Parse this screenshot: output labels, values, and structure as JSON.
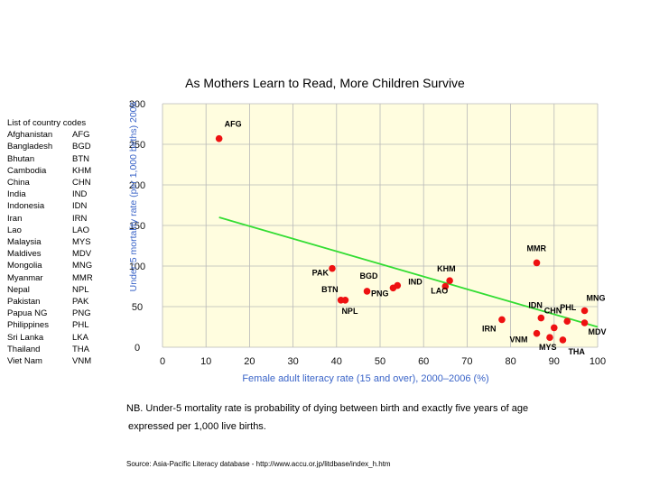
{
  "colors": {
    "plot_bg": "#fffddf",
    "grid": "#b8b8b8",
    "axis_text": "#3a64c8",
    "trend": "#33dd33",
    "point": "#ee1111",
    "label": "#000000"
  },
  "chart_data": {
    "type": "scatter",
    "title": "As Mothers Learn to Read, More Children Survive",
    "xlabel": "Female adult literacy rate (15 and over), 2000–2006 (%)",
    "ylabel": "Under-5 mortality rate (per 1,000 births) 2006",
    "xlim": [
      0,
      100
    ],
    "ylim": [
      0,
      300
    ],
    "grid": true,
    "xticks": [
      0,
      10,
      20,
      30,
      40,
      50,
      60,
      70,
      80,
      90,
      100
    ],
    "yticks": [
      0,
      50,
      100,
      150,
      200,
      250,
      300
    ],
    "xtick_labels": [
      "0",
      "10",
      "20",
      "30",
      "40",
      "50",
      "60",
      "70",
      "80",
      "90",
      "100"
    ],
    "ytick_labels": [
      "0",
      "50",
      "100",
      "150",
      "200",
      "250",
      "300"
    ],
    "points": [
      {
        "code": "AFG",
        "x": 13,
        "y": 257
      },
      {
        "code": "PAK",
        "x": 39,
        "y": 97
      },
      {
        "code": "BTN",
        "x": 41,
        "y": 58
      },
      {
        "code": "NPL",
        "x": 42,
        "y": 58
      },
      {
        "code": "BGD",
        "x": 47,
        "y": 69
      },
      {
        "code": "PNG",
        "x": 53,
        "y": 73
      },
      {
        "code": "IND",
        "x": 54,
        "y": 76
      },
      {
        "code": "KHM",
        "x": 66,
        "y": 82
      },
      {
        "code": "LAO",
        "x": 65,
        "y": 75
      },
      {
        "code": "MMR",
        "x": 86,
        "y": 104
      },
      {
        "code": "IRN",
        "x": 78,
        "y": 34
      },
      {
        "code": "IDN",
        "x": 87,
        "y": 36
      },
      {
        "code": "CHN",
        "x": 90,
        "y": 24
      },
      {
        "code": "VNM",
        "x": 86,
        "y": 17
      },
      {
        "code": "MYS",
        "x": 89,
        "y": 12
      },
      {
        "code": "THA",
        "x": 92,
        "y": 9
      },
      {
        "code": "PHL",
        "x": 93,
        "y": 32
      },
      {
        "code": "MNG",
        "x": 97,
        "y": 45
      },
      {
        "code": "MDV",
        "x": 97,
        "y": 30
      }
    ],
    "trendline": {
      "x": [
        13,
        100
      ],
      "y": [
        160,
        25
      ]
    }
  },
  "legend": {
    "heading": "List of country codes",
    "rows": [
      {
        "name": "Afghanistan",
        "code": "AFG"
      },
      {
        "name": "Bangladesh",
        "code": "BGD"
      },
      {
        "name": "Bhutan",
        "code": "BTN"
      },
      {
        "name": "Cambodia",
        "code": "KHM"
      },
      {
        "name": "China",
        "code": "CHN"
      },
      {
        "name": "India",
        "code": "IND"
      },
      {
        "name": "Indonesia",
        "code": "IDN"
      },
      {
        "name": "Iran",
        "code": "IRN"
      },
      {
        "name": "Lao",
        "code": "LAO"
      },
      {
        "name": "Malaysia",
        "code": "MYS"
      },
      {
        "name": "Maldives",
        "code": "MDV"
      },
      {
        "name": "Mongolia",
        "code": "MNG"
      },
      {
        "name": "Myanmar",
        "code": "MMR"
      },
      {
        "name": "Nepal",
        "code": "NPL"
      },
      {
        "name": "Pakistan",
        "code": "PAK"
      },
      {
        "name": "Papua NG",
        "code": "PNG"
      },
      {
        "name": "Philippines",
        "code": "PHL"
      },
      {
        "name": "Sri Lanka",
        "code": "LKA"
      },
      {
        "name": "Thailand",
        "code": "THA"
      },
      {
        "name": "Viet Nam",
        "code": "VNM"
      }
    ]
  },
  "note": {
    "line1": "NB. Under-5 mortality rate is probability of dying between birth and exactly five years of age",
    "line2": "expressed per 1,000 live births."
  },
  "source": "Source: Asia-Pacific Literacy database - http://www.accu.or.jp/litdbase/index_h.htm"
}
